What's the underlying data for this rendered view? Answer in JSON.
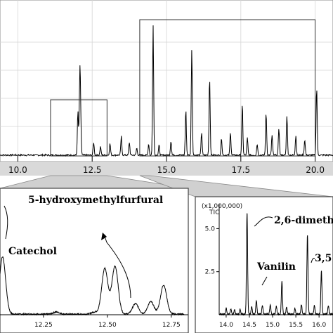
{
  "chart_data": [
    {
      "type": "line",
      "panel": "overview",
      "xlim": [
        9.4,
        20.6
      ],
      "x_ticks": [
        "10.0",
        "12.5",
        "15.0",
        "17.5",
        "20.0"
      ],
      "x_tick_values": [
        10.0,
        12.5,
        15.0,
        17.5,
        20.0
      ],
      "peaks": [
        {
          "x": 12.02,
          "h": 0.31
        },
        {
          "x": 12.08,
          "h": 0.38
        },
        {
          "x": 12.1,
          "h": 0.34
        },
        {
          "x": 12.12,
          "h": 0.08
        },
        {
          "x": 12.55,
          "h": 0.09
        },
        {
          "x": 12.78,
          "h": 0.06
        },
        {
          "x": 13.1,
          "h": 0.08
        },
        {
          "x": 13.48,
          "h": 0.13
        },
        {
          "x": 13.75,
          "h": 0.09
        },
        {
          "x": 14.0,
          "h": 0.05
        },
        {
          "x": 14.4,
          "h": 0.08
        },
        {
          "x": 14.55,
          "h": 0.92
        },
        {
          "x": 14.75,
          "h": 0.07
        },
        {
          "x": 15.15,
          "h": 0.1
        },
        {
          "x": 15.65,
          "h": 0.32
        },
        {
          "x": 15.85,
          "h": 0.75
        },
        {
          "x": 16.18,
          "h": 0.16
        },
        {
          "x": 16.45,
          "h": 0.55
        },
        {
          "x": 16.85,
          "h": 0.12
        },
        {
          "x": 17.15,
          "h": 0.16
        },
        {
          "x": 17.55,
          "h": 0.36
        },
        {
          "x": 17.72,
          "h": 0.12
        },
        {
          "x": 18.05,
          "h": 0.08
        },
        {
          "x": 18.35,
          "h": 0.3
        },
        {
          "x": 18.55,
          "h": 0.14
        },
        {
          "x": 18.78,
          "h": 0.19
        },
        {
          "x": 19.05,
          "h": 0.28
        },
        {
          "x": 19.35,
          "h": 0.14
        },
        {
          "x": 19.65,
          "h": 0.11
        },
        {
          "x": 20.05,
          "h": 0.48
        }
      ],
      "zoom_regions": [
        {
          "x_start": 11.1,
          "x_end": 13.0
        },
        {
          "x_start": 14.1,
          "x_end": 20.0
        }
      ]
    },
    {
      "type": "line",
      "panel": "inset-left",
      "xlim": [
        12.08,
        12.8
      ],
      "x_ticks": [
        "12.25",
        "12.50",
        "12.75"
      ],
      "x_tick_values": [
        12.25,
        12.5,
        12.75
      ],
      "annotations": [
        "5-hydroxymethylfurfural",
        "Catechol"
      ],
      "peaks": [
        {
          "x": 12.09,
          "h": 0.55
        },
        {
          "x": 12.3,
          "h": 0.02
        },
        {
          "x": 12.45,
          "h": 0.02
        },
        {
          "x": 12.49,
          "h": 0.44
        },
        {
          "x": 12.53,
          "h": 0.46
        },
        {
          "x": 12.61,
          "h": 0.1
        },
        {
          "x": 12.67,
          "h": 0.12
        },
        {
          "x": 12.72,
          "h": 0.28
        }
      ]
    },
    {
      "type": "line",
      "panel": "inset-right",
      "xlim": [
        13.85,
        16.3
      ],
      "y_multiplier": "(x1,000,000)",
      "y_label": "TIC",
      "x_ticks": [
        "14.0",
        "14.5",
        "15.0",
        "15.5",
        "16.0"
      ],
      "x_tick_values": [
        14.0,
        14.5,
        15.0,
        15.5,
        16.0
      ],
      "y_ticks": [
        "2.5",
        "5.0"
      ],
      "y_tick_values": [
        2.5,
        5.0
      ],
      "annotations": [
        "2,6-dimeth",
        "3,5",
        "Vanilin"
      ],
      "peaks": [
        {
          "x": 14.0,
          "h": 0.35
        },
        {
          "x": 14.1,
          "h": 0.3
        },
        {
          "x": 14.18,
          "h": 0.25
        },
        {
          "x": 14.3,
          "h": 0.3
        },
        {
          "x": 14.45,
          "h": 5.9
        },
        {
          "x": 14.55,
          "h": 0.45
        },
        {
          "x": 14.65,
          "h": 0.8
        },
        {
          "x": 14.78,
          "h": 0.5
        },
        {
          "x": 14.95,
          "h": 0.55
        },
        {
          "x": 15.08,
          "h": 0.45
        },
        {
          "x": 15.2,
          "h": 1.9
        },
        {
          "x": 15.3,
          "h": 0.4
        },
        {
          "x": 15.48,
          "h": 0.35
        },
        {
          "x": 15.62,
          "h": 0.55
        },
        {
          "x": 15.75,
          "h": 4.6
        },
        {
          "x": 15.9,
          "h": 0.5
        },
        {
          "x": 16.05,
          "h": 2.5
        },
        {
          "x": 16.2,
          "h": 0.5
        }
      ]
    }
  ]
}
